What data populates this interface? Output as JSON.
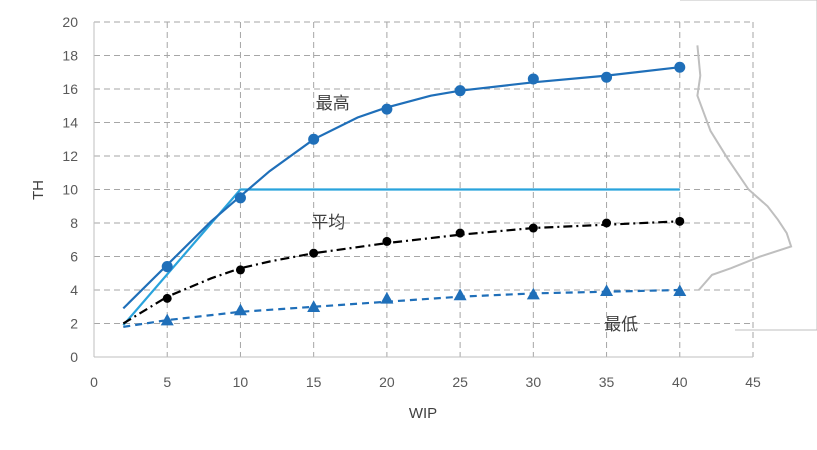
{
  "chart_data": {
    "type": "line",
    "xlabel": "WIP",
    "ylabel": "TH",
    "xlim": [
      0,
      45
    ],
    "ylim": [
      0,
      20
    ],
    "xticks": [
      0,
      5,
      10,
      15,
      20,
      25,
      30,
      35,
      40,
      45
    ],
    "yticks": [
      0,
      2,
      4,
      6,
      8,
      10,
      12,
      14,
      16,
      18,
      20
    ],
    "grid": "dashed",
    "colors": {
      "max": "#1f6fb9",
      "avg": "#000000",
      "min": "#1f6fb9",
      "cap": "#29a3dc",
      "dist": "#bfbfbf",
      "grid": "#a6a6a6"
    },
    "series": [
      {
        "name": "最高",
        "marker": "circle",
        "line": "solid",
        "points": [
          [
            5,
            5.4
          ],
          [
            10,
            9.5
          ],
          [
            15,
            13.0
          ],
          [
            20,
            14.8
          ],
          [
            25,
            15.9
          ],
          [
            30,
            16.6
          ],
          [
            35,
            16.7
          ],
          [
            40,
            17.3
          ]
        ],
        "fit": [
          [
            2,
            2.9
          ],
          [
            5,
            5.5
          ],
          [
            8,
            8.1
          ],
          [
            10,
            9.6
          ],
          [
            12,
            11.1
          ],
          [
            15,
            13.0
          ],
          [
            18,
            14.3
          ],
          [
            20,
            14.9
          ],
          [
            23,
            15.6
          ],
          [
            25,
            15.9
          ],
          [
            30,
            16.4
          ],
          [
            35,
            16.8
          ],
          [
            40,
            17.3
          ]
        ]
      },
      {
        "name": "平均",
        "marker": "circle",
        "line": "dash-dot",
        "points": [
          [
            5,
            3.5
          ],
          [
            10,
            5.2
          ],
          [
            15,
            6.2
          ],
          [
            20,
            6.9
          ],
          [
            25,
            7.4
          ],
          [
            30,
            7.7
          ],
          [
            35,
            8.0
          ],
          [
            40,
            8.1
          ]
        ],
        "fit": [
          [
            2,
            2.0
          ],
          [
            5,
            3.6
          ],
          [
            8,
            4.7
          ],
          [
            10,
            5.3
          ],
          [
            12,
            5.7
          ],
          [
            15,
            6.2
          ],
          [
            20,
            6.8
          ],
          [
            25,
            7.3
          ],
          [
            30,
            7.7
          ],
          [
            35,
            7.9
          ],
          [
            40,
            8.1
          ]
        ]
      },
      {
        "name": "最低",
        "marker": "triangle",
        "line": "dashed",
        "points": [
          [
            5,
            2.2
          ],
          [
            10,
            2.8
          ],
          [
            15,
            3.0
          ],
          [
            20,
            3.5
          ],
          [
            25,
            3.7
          ],
          [
            30,
            3.75
          ],
          [
            35,
            3.95
          ],
          [
            40,
            3.95
          ]
        ],
        "fit": [
          [
            2,
            1.8
          ],
          [
            5,
            2.2
          ],
          [
            10,
            2.7
          ],
          [
            15,
            3.0
          ],
          [
            20,
            3.3
          ],
          [
            25,
            3.6
          ],
          [
            30,
            3.8
          ],
          [
            35,
            3.9
          ],
          [
            40,
            4.0
          ]
        ]
      },
      {
        "name": "",
        "line": "solid",
        "points": [
          [
            2,
            1.9
          ],
          [
            10,
            10
          ],
          [
            40,
            10
          ]
        ]
      }
    ],
    "annotations": [
      {
        "text": "最高",
        "x": 16.3,
        "y": 14.8
      },
      {
        "text": "平均",
        "x": 16.0,
        "y": 7.7
      },
      {
        "text": "最低",
        "x": 36.0,
        "y": 1.6
      }
    ],
    "distribution": {
      "shape": [
        [
          41.2,
          18.6
        ],
        [
          41.4,
          16.8
        ],
        [
          41.2,
          15.6
        ],
        [
          42.1,
          13.5
        ],
        [
          43.3,
          11.8
        ],
        [
          44.7,
          10.0
        ],
        [
          46.0,
          9.0
        ],
        [
          46.7,
          8.2
        ],
        [
          47.3,
          7.4
        ],
        [
          47.6,
          6.6
        ],
        [
          45.5,
          6.0
        ],
        [
          43.5,
          5.3
        ],
        [
          42.2,
          4.9
        ],
        [
          41.3,
          4.0
        ]
      ]
    }
  }
}
